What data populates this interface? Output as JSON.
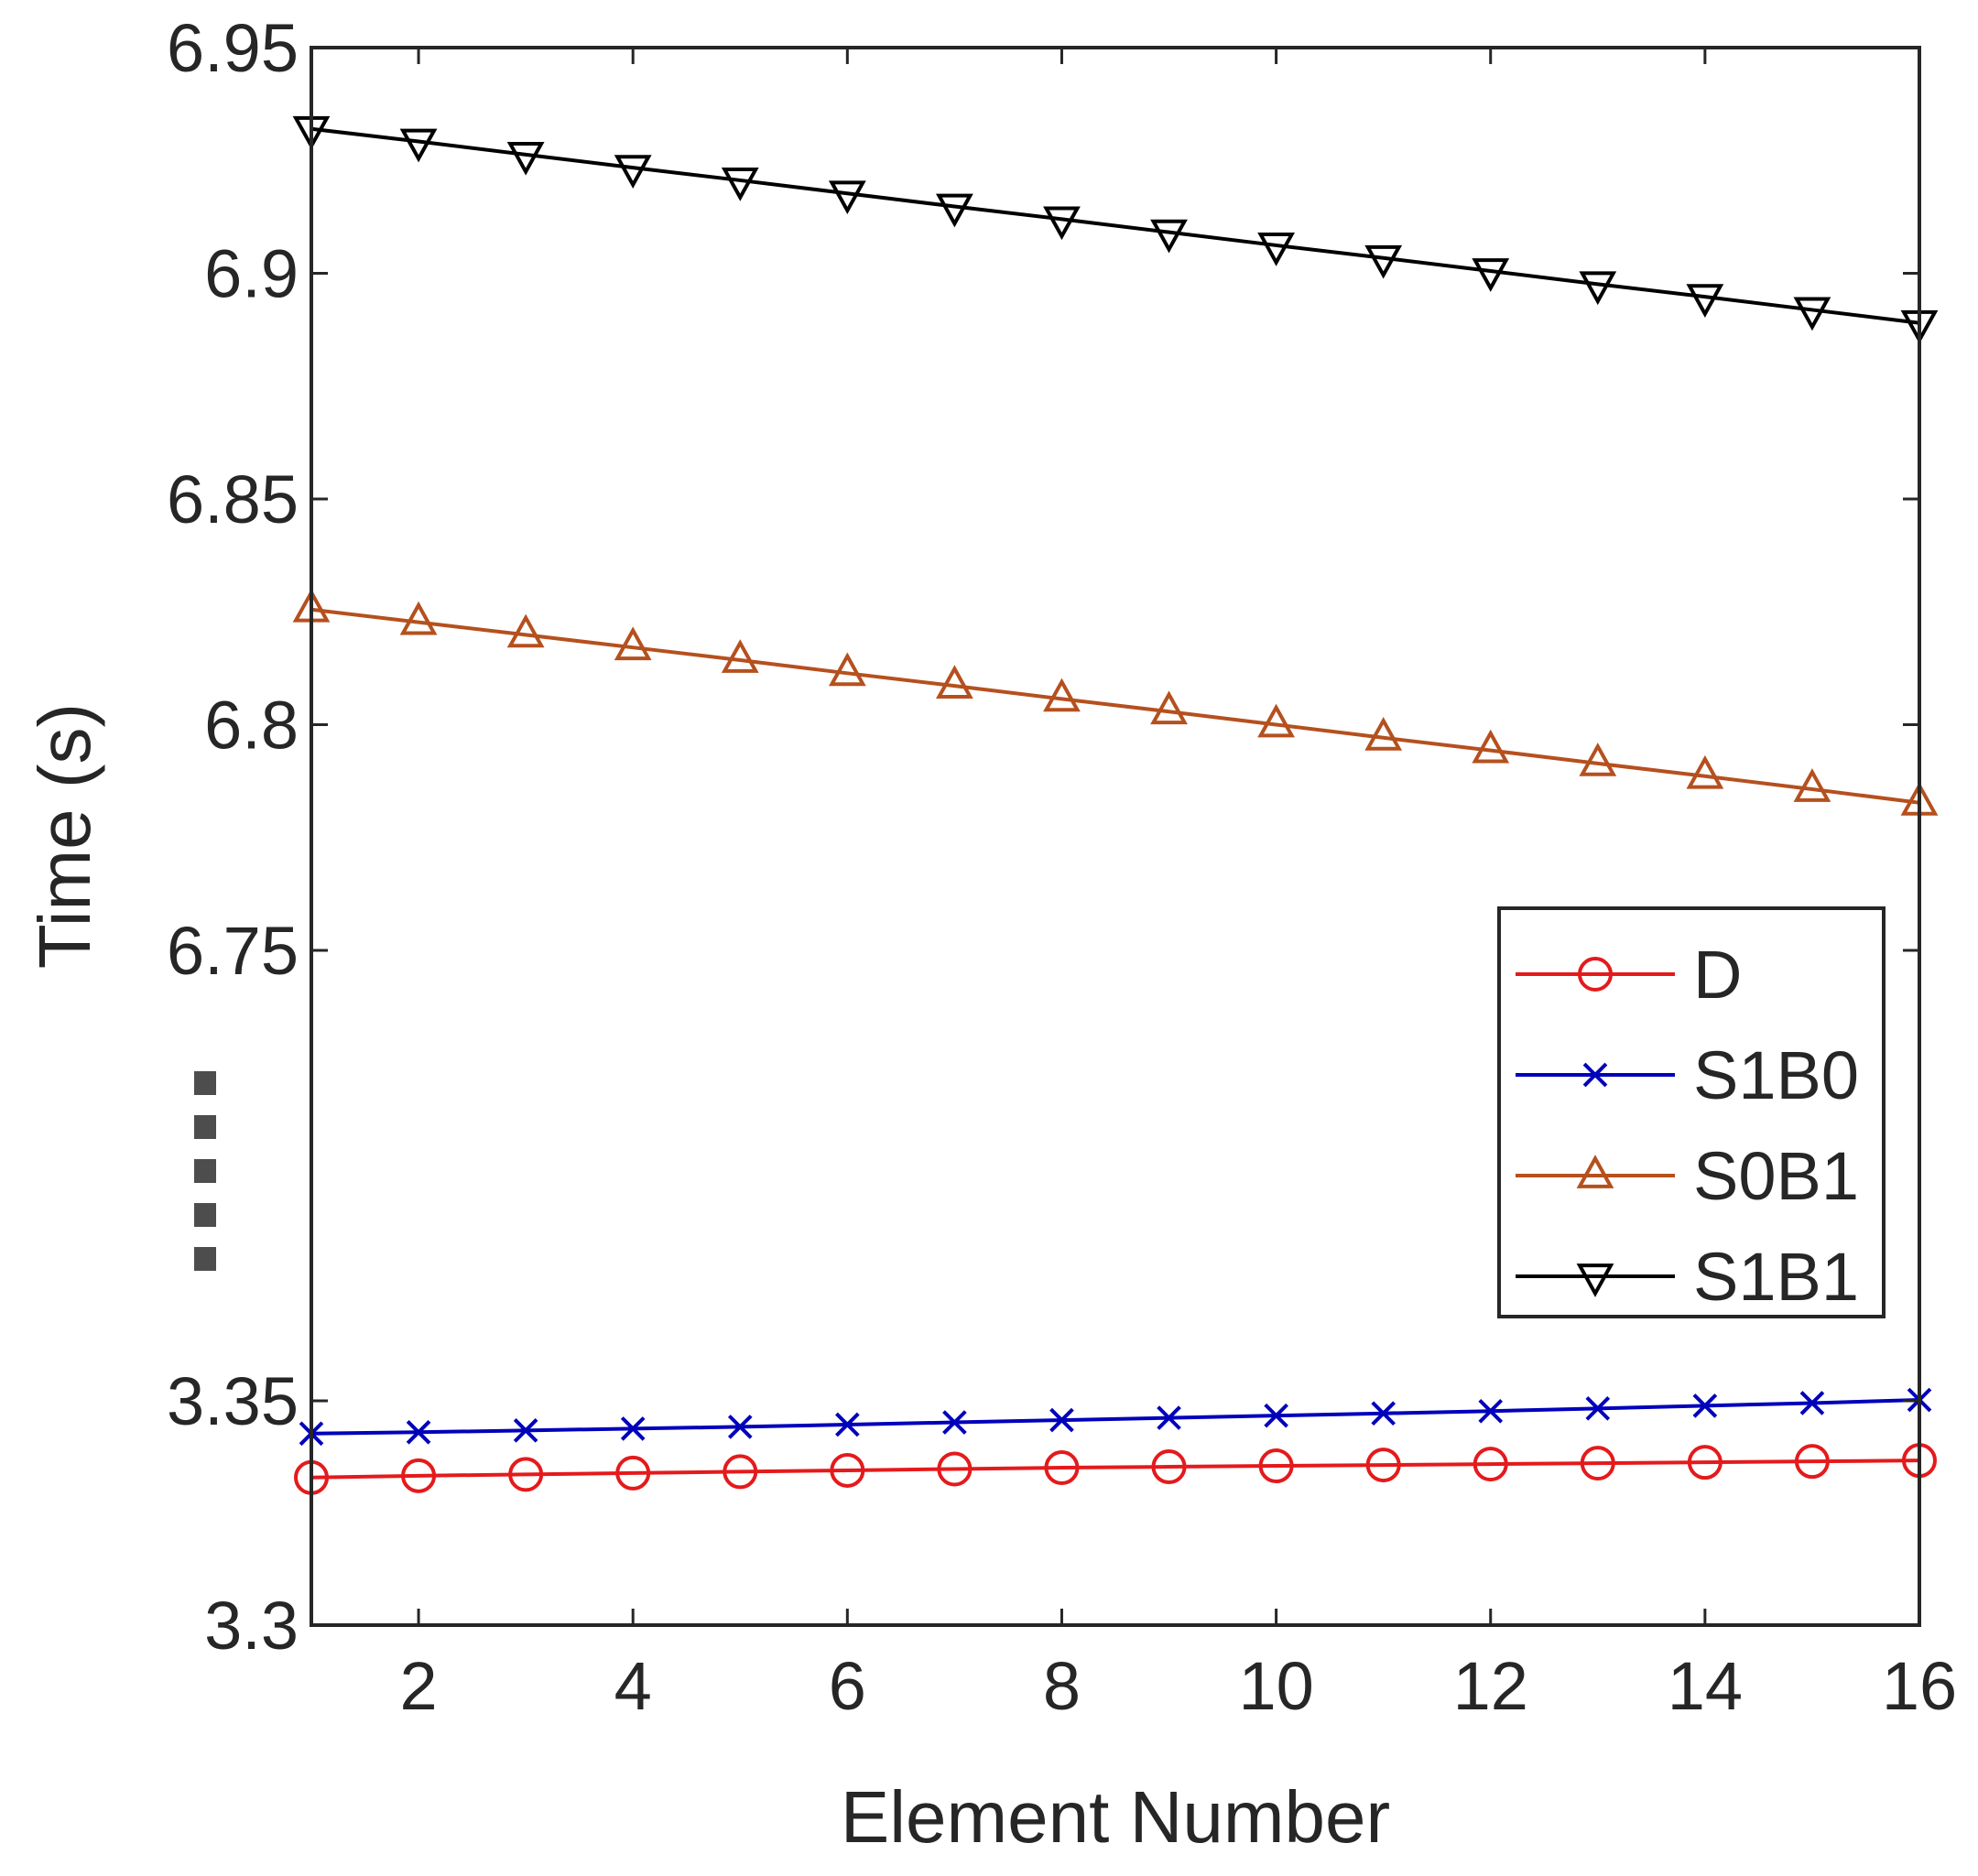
{
  "chart_data": {
    "type": "line",
    "title": "",
    "xlabel": "Element Number",
    "ylabel": "Time (s)",
    "x": [
      1,
      2,
      3,
      4,
      5,
      6,
      7,
      8,
      9,
      10,
      11,
      12,
      13,
      14,
      15,
      16
    ],
    "xlim": [
      1,
      16
    ],
    "x_ticks": [
      2,
      4,
      6,
      8,
      10,
      12,
      14,
      16
    ],
    "x_tick_labels": [
      "2",
      "4",
      "6",
      "8",
      "10",
      "12",
      "14",
      "16"
    ],
    "axis_break": {
      "style": "dotted vertical marks between 6.75 and 3.35",
      "upper_segment": {
        "ylim": [
          6.75,
          6.95
        ],
        "ticks": [
          "6.75",
          "6.8",
          "6.85",
          "6.9",
          "6.95"
        ]
      },
      "lower_segment": {
        "ylim": [
          3.3,
          3.35
        ],
        "ticks": [
          "3.3",
          "3.35"
        ]
      }
    },
    "y_tick_values": [
      3.3,
      3.35,
      6.75,
      6.8,
      6.85,
      6.9,
      6.95
    ],
    "y_tick_labels": [
      "3.3",
      "3.35",
      "6.75",
      "6.8",
      "6.85",
      "6.9",
      "6.95"
    ],
    "legend": {
      "position": "center-right",
      "entries": [
        "D",
        "S1B0",
        "S0B1",
        "S1B1"
      ]
    },
    "series": [
      {
        "name": "D",
        "color": "#e41a1c",
        "marker": "circle",
        "values": [
          3.3329,
          3.3333,
          3.3336,
          3.3339,
          3.3342,
          3.3345,
          3.3348,
          3.3351,
          3.3353,
          3.3355,
          3.3357,
          3.3359,
          3.3361,
          3.3363,
          3.3365,
          3.3367
        ]
      },
      {
        "name": "S1B0",
        "color": "#0000bb",
        "marker": "x",
        "values": [
          3.3427,
          3.343,
          3.3434,
          3.3438,
          3.3442,
          3.3447,
          3.3452,
          3.3457,
          3.3462,
          3.3467,
          3.3472,
          3.3477,
          3.3483,
          3.3489,
          3.3495,
          3.3502
        ]
      },
      {
        "name": "S0B1",
        "color": "#b5501e",
        "marker": "triangle-up",
        "values": [
          6.8255,
          6.8227,
          6.8199,
          6.8171,
          6.8143,
          6.8114,
          6.8086,
          6.8057,
          6.8029,
          6.8,
          6.7971,
          6.7943,
          6.7914,
          6.7886,
          6.7857,
          6.7827
        ]
      },
      {
        "name": "S1B1",
        "color": "#000000",
        "marker": "triangle-down",
        "values": [
          6.932,
          6.9292,
          6.9263,
          6.9234,
          6.9206,
          6.9177,
          6.9148,
          6.912,
          6.9091,
          6.9062,
          6.9034,
          6.9005,
          6.8976,
          6.8948,
          6.8919,
          6.889
        ]
      }
    ]
  }
}
